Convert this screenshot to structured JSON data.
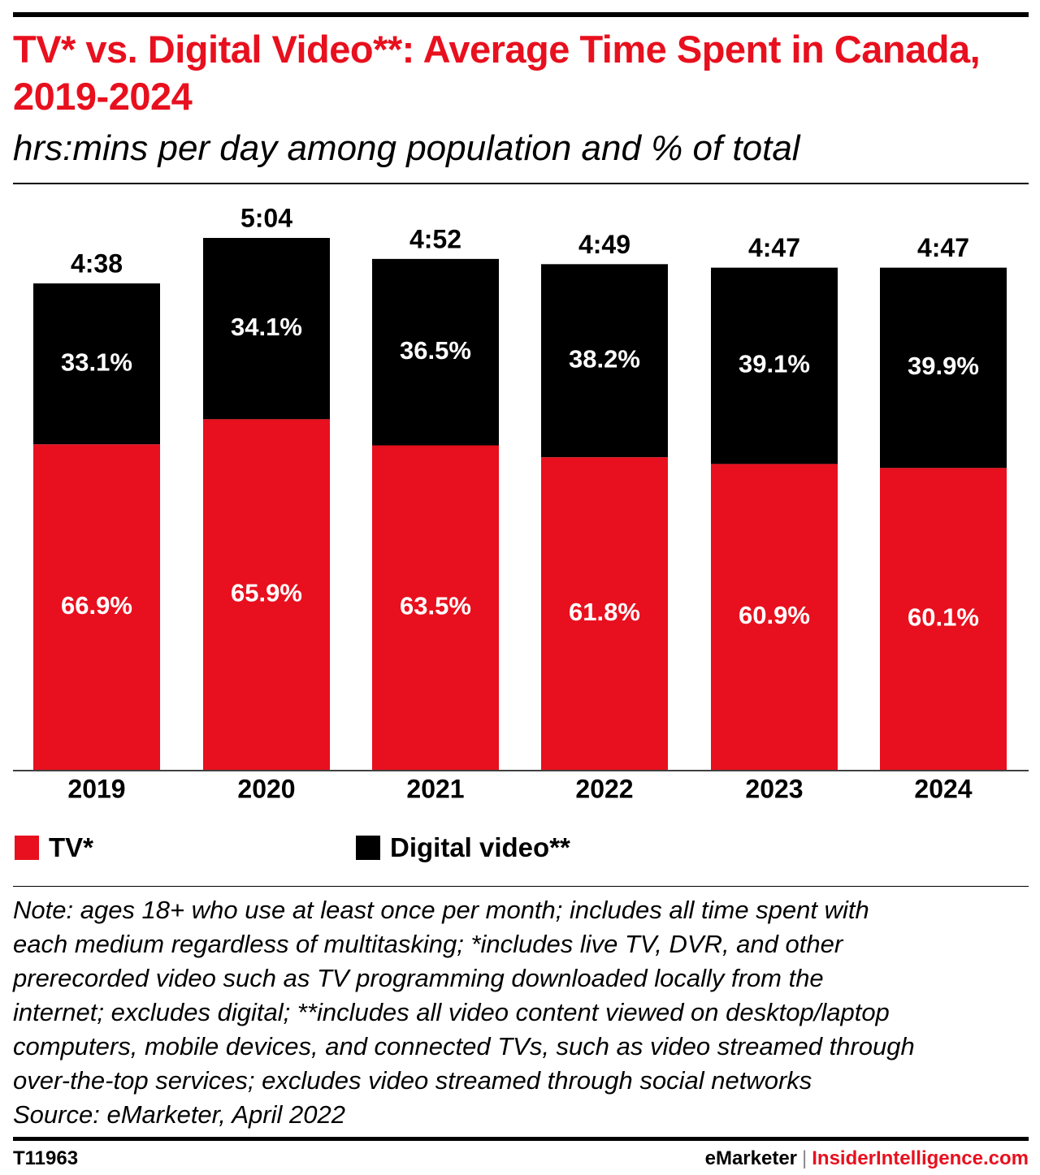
{
  "title": "TV* vs. Digital Video**: Average Time Spent in Canada, 2019-2024",
  "subtitle": "hrs:mins per day among population and % of total",
  "legend": {
    "tv_label": "TV*",
    "digital_label": "Digital video**"
  },
  "colors": {
    "tv": "#e8101e",
    "digital": "#000000",
    "title": "#e8101e"
  },
  "chart_data": {
    "type": "bar",
    "stacked": true,
    "categories": [
      "2019",
      "2020",
      "2021",
      "2022",
      "2023",
      "2024"
    ],
    "totals": [
      "4:38",
      "5:04",
      "4:52",
      "4:49",
      "4:47",
      "4:47"
    ],
    "series": [
      {
        "name": "TV*",
        "values": [
          66.9,
          65.9,
          63.5,
          61.8,
          60.9,
          60.1
        ],
        "labels": [
          "66.9%",
          "65.9%",
          "63.5%",
          "61.8%",
          "60.9%",
          "60.1%"
        ]
      },
      {
        "name": "Digital video**",
        "values": [
          33.1,
          34.1,
          36.5,
          38.2,
          39.1,
          39.9
        ],
        "labels": [
          "33.1%",
          "34.1%",
          "36.5%",
          "38.2%",
          "39.1%",
          "39.9%"
        ]
      }
    ],
    "ylim": [
      0,
      100
    ],
    "grid": false,
    "legend_position": "bottom"
  },
  "note": "Note: ages 18+ who use at least once per month; includes all time spent with\neach medium regardless of multitasking; *includes live TV, DVR, and other\nprerecorded video such as TV programming downloaded locally from the\ninternet; excludes digital; **includes all video content viewed on desktop/laptop\ncomputers, mobile devices, and connected TVs, such as video streamed through\nover-the-top services; excludes video streamed through social networks\nSource: eMarketer, April 2022",
  "footer": {
    "id": "T11963",
    "brand_a": "eMarketer",
    "separator": "|",
    "brand_b": "InsiderIntelligence.com"
  }
}
